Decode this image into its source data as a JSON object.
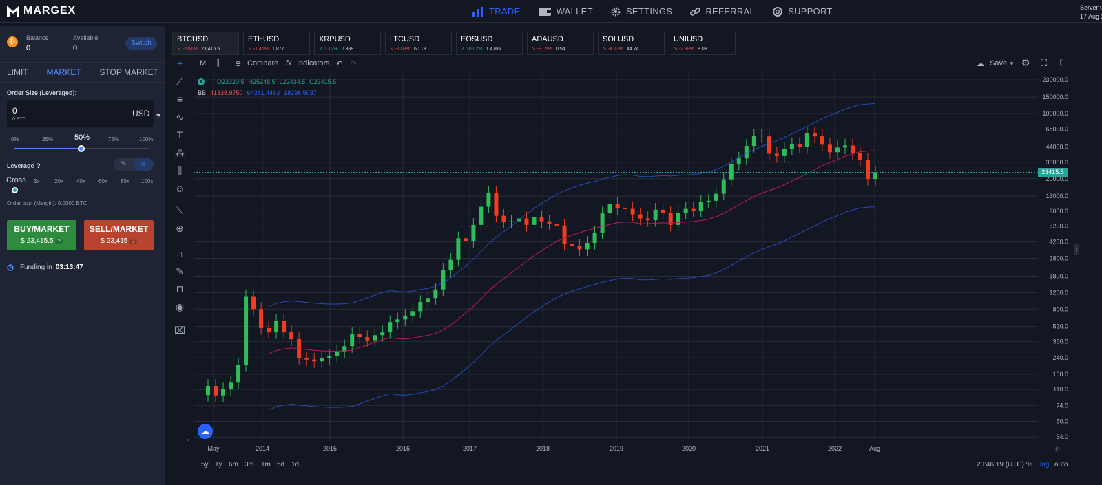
{
  "brand": {
    "name": "MARGEX"
  },
  "nav": {
    "items": [
      {
        "label": "TRADE",
        "icon": "bar-chart-icon",
        "active": true
      },
      {
        "label": "WALLET",
        "icon": "wallet-icon",
        "active": false
      },
      {
        "label": "SETTINGS",
        "icon": "gear-icon",
        "active": false
      },
      {
        "label": "REFERRAL",
        "icon": "link-icon",
        "active": false
      },
      {
        "label": "SUPPORT",
        "icon": "lifebuoy-icon",
        "active": false
      }
    ]
  },
  "server": {
    "line1": "Server t",
    "line2": "17 Aug 2"
  },
  "account": {
    "balance_label": "Balance",
    "balance_value": "0",
    "available_label": "Available",
    "available_value": "0",
    "switch_label": "Switch",
    "coin_symbol": "₿"
  },
  "order_tabs": [
    {
      "label": "LIMIT",
      "active": false
    },
    {
      "label": "MARKET",
      "active": true
    },
    {
      "label": "STOP MARKET",
      "active": false
    }
  ],
  "order": {
    "size_label": "Order Size (Leveraged):",
    "size_value": "0",
    "size_sub": "0 BTC",
    "currency": "USD",
    "help": "?",
    "slider_marks": [
      "0%",
      "25%",
      "50%",
      "75%",
      "100%"
    ],
    "slider_value": 0.5,
    "leverage_label": "Leverage",
    "cross_label": "Cross",
    "leverage_marks": [
      "5x",
      "20x",
      "40x",
      "60x",
      "80x",
      "100x"
    ],
    "cost_label": "Order cost (Margin): 0.0000 BTC",
    "buy_label": "BUY/MARKET",
    "buy_price": "$ 23,415.5",
    "sell_label": "SELL/MARKET",
    "sell_price": "$ 23,415",
    "funding_label": "Funding in",
    "funding_time": "03:13:47"
  },
  "tickers": [
    {
      "symbol": "BTCUSD",
      "change": "-2.61%",
      "price": "23,415.5",
      "dir": "neg",
      "active": true
    },
    {
      "symbol": "ETHUSD",
      "change": "-1.46%",
      "price": "1,877.1",
      "dir": "neg"
    },
    {
      "symbol": "XRPUSD",
      "change": "1.12%",
      "price": "0.388",
      "dir": "pos"
    },
    {
      "symbol": "LTCUSD",
      "change": "-1.02%",
      "price": "60.18",
      "dir": "neg"
    },
    {
      "symbol": "EOSUSD",
      "change": "10.02%",
      "price": "1.4765",
      "dir": "pos"
    },
    {
      "symbol": "ADAUSD",
      "change": "-3.05%",
      "price": "0.54",
      "dir": "neg"
    },
    {
      "symbol": "SOLUSD",
      "change": "-4.73%",
      "price": "44.74",
      "dir": "neg"
    },
    {
      "symbol": "UNIUSD",
      "change": "-2.88%",
      "price": "8.08",
      "dir": "neg"
    }
  ],
  "chart_toolbar": {
    "interval": "M",
    "compare": "Compare",
    "indicators": "Indicators",
    "save": "Save"
  },
  "chart_legend": {
    "o": "O23320.5",
    "h": "H25248.5",
    "l": "L22434.5",
    "c": "C23415.5",
    "bb": "BB",
    "bb1": "41338.9750",
    "bb2": "64381.4463",
    "bb3": "18296.5037"
  },
  "bottom": {
    "timeframes": [
      "5y",
      "1y",
      "6m",
      "3m",
      "1m",
      "5d",
      "1d"
    ],
    "time": "20:46:19 (UTC)",
    "pct": "%",
    "log": "log",
    "auto": "auto"
  },
  "chart_data": {
    "type": "candlestick",
    "scale": "log",
    "grid": true,
    "last_price": "23415.5",
    "y_ticks": [
      "230000.0",
      "150000.0",
      "100000.0",
      "68000.0",
      "44000.0",
      "30000.0",
      "20000.0",
      "13000.0",
      "9000.0",
      "6200.0",
      "4200.0",
      "2800.0",
      "1800.0",
      "1200.0",
      "800.0",
      "520.0",
      "360.0",
      "240.0",
      "160.0",
      "110.0",
      "74.0",
      "50.0",
      "34.0"
    ],
    "x_ticks": [
      "May",
      "2014",
      "2015",
      "2016",
      "2017",
      "2018",
      "2019",
      "2020",
      "2021",
      "2022",
      "Aug"
    ],
    "candles_monthly_close": [
      120,
      95,
      110,
      130,
      200,
      1100,
      800,
      500,
      450,
      600,
      450,
      380,
      240,
      230,
      220,
      240,
      250,
      280,
      320,
      430,
      400,
      370,
      420,
      450,
      580,
      620,
      680,
      760,
      950,
      1050,
      1300,
      2100,
      2700,
      4600,
      4300,
      6400,
      10000,
      14000,
      8000,
      6900,
      7000,
      7500,
      6400,
      7700,
      7000,
      6600,
      6300,
      4000,
      3800,
      3500,
      4100,
      5300,
      8500,
      10800,
      9600,
      9500,
      8300,
      7500,
      7200,
      9300,
      8600,
      6400,
      8600,
      9500,
      9100,
      11300,
      11600,
      13800,
      19700,
      29000,
      33000,
      45000,
      58000,
      57000,
      37000,
      35000,
      42000,
      47000,
      43800,
      61300,
      57000,
      46300,
      38500,
      43200,
      45500,
      37700,
      31800,
      19900,
      23400
    ]
  }
}
